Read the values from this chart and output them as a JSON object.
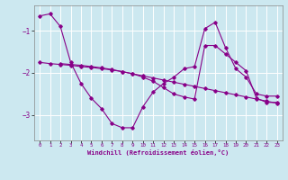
{
  "xlabel": "Windchill (Refroidissement éolien,°C)",
  "background_color": "#cce8f0",
  "grid_color": "#ffffff",
  "line_color": "#880088",
  "xlim": [
    -0.5,
    23.5
  ],
  "ylim": [
    -3.6,
    -0.4
  ],
  "yticks": [
    -3,
    -2,
    -1
  ],
  "xticks": [
    0,
    1,
    2,
    3,
    4,
    5,
    6,
    7,
    8,
    9,
    10,
    11,
    12,
    13,
    14,
    15,
    16,
    17,
    18,
    19,
    20,
    21,
    22,
    23
  ],
  "line1_x": [
    0,
    1,
    2,
    3,
    4,
    5,
    6,
    7,
    8,
    9,
    10,
    11,
    12,
    13,
    14,
    15,
    16,
    17,
    18,
    19,
    20,
    21,
    22,
    23
  ],
  "line1_y": [
    -0.65,
    -0.6,
    -0.9,
    -1.75,
    -2.25,
    -2.6,
    -2.85,
    -3.2,
    -3.3,
    -3.3,
    -2.8,
    -2.45,
    -2.25,
    -2.1,
    -1.9,
    -1.85,
    -0.95,
    -0.8,
    -1.4,
    -1.9,
    -2.1,
    -2.5,
    -2.55,
    -2.55
  ],
  "line2_x": [
    2,
    3,
    4,
    5,
    6,
    7,
    8,
    9,
    10,
    11,
    12,
    13,
    14,
    15,
    16,
    17,
    18,
    19,
    20,
    21,
    22,
    23
  ],
  "line2_y": [
    -1.78,
    -1.8,
    -1.82,
    -1.85,
    -1.88,
    -1.92,
    -1.97,
    -2.02,
    -2.07,
    -2.12,
    -2.17,
    -2.22,
    -2.27,
    -2.32,
    -2.37,
    -2.42,
    -2.47,
    -2.52,
    -2.57,
    -2.62,
    -2.67,
    -2.72
  ],
  "line3_x": [
    0,
    1,
    2,
    3,
    4,
    5,
    6,
    7,
    8,
    9,
    10,
    11,
    12,
    13,
    14,
    15,
    16,
    17,
    18,
    19,
    20,
    21,
    22,
    23
  ],
  "line3_y": [
    -1.75,
    -1.78,
    -1.8,
    -1.82,
    -1.85,
    -1.87,
    -1.9,
    -1.93,
    -1.97,
    -2.02,
    -2.1,
    -2.2,
    -2.35,
    -2.5,
    -2.57,
    -2.62,
    -1.35,
    -1.35,
    -1.55,
    -1.75,
    -1.95,
    -2.6,
    -2.7,
    -2.7
  ]
}
